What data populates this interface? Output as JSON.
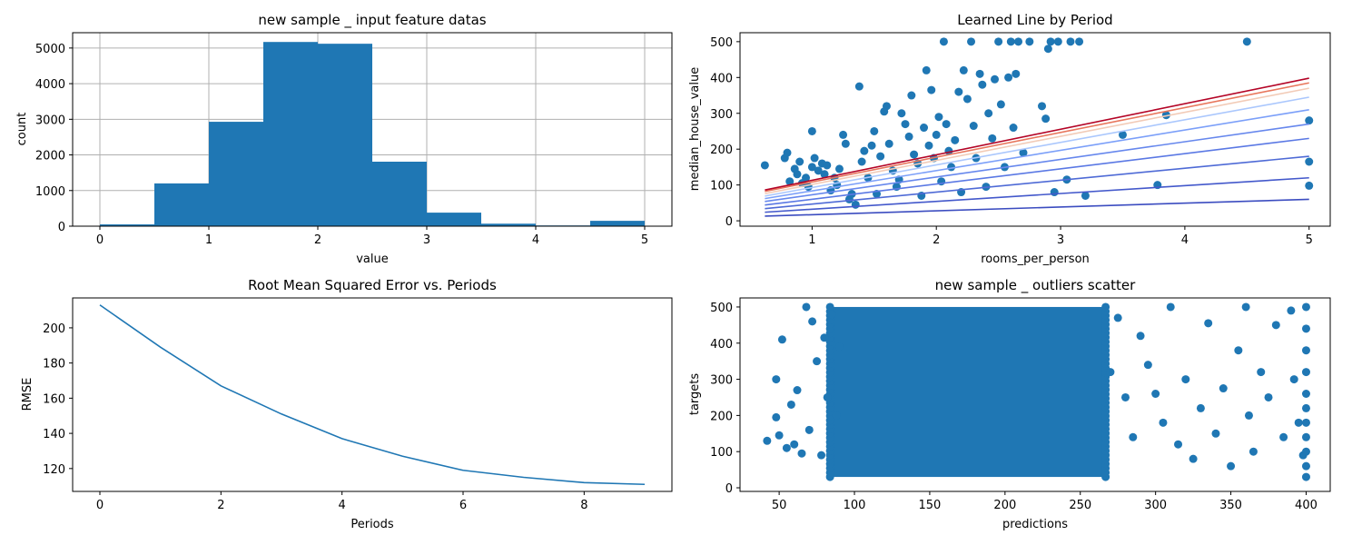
{
  "colors": {
    "series": "#1f77b4",
    "grid": "#b0b0b0",
    "axis": "#000000"
  },
  "chart_data": [
    {
      "type": "bar",
      "title": "new sample _ input feature datas",
      "xlabel": "value",
      "ylabel": "count",
      "xlim": [
        -0.25,
        5.25
      ],
      "ylim": [
        0,
        5430
      ],
      "grid": true,
      "xticks": [
        0,
        1,
        2,
        3,
        4,
        5
      ],
      "yticks": [
        0,
        1000,
        2000,
        3000,
        4000,
        5000
      ],
      "bin_edges": [
        0,
        0.5,
        1,
        1.5,
        2,
        2.5,
        3,
        3.5,
        4,
        4.5,
        5
      ],
      "values": [
        50,
        1200,
        2930,
        5170,
        5120,
        1810,
        380,
        70,
        20,
        150
      ]
    },
    {
      "type": "line",
      "title": "Learned Line by Period",
      "xlabel": "rooms_per_person",
      "ylabel": "median_house_value",
      "xlim": [
        0.42,
        5.17
      ],
      "ylim": [
        -15,
        525
      ],
      "grid": false,
      "xticks": [
        1,
        2,
        3,
        4,
        5
      ],
      "yticks": [
        0,
        100,
        200,
        300,
        400,
        500
      ],
      "series": [
        {
          "color": "#3b4cc0",
          "values": [
            [
              0.62,
              13
            ],
            [
              5.0,
              60
            ]
          ]
        },
        {
          "color": "#4358cb",
          "values": [
            [
              0.62,
              24
            ],
            [
              5.0,
              120
            ]
          ]
        },
        {
          "color": "#4e6ad6",
          "values": [
            [
              0.62,
              34
            ],
            [
              5.0,
              180
            ]
          ]
        },
        {
          "color": "#5a78e4",
          "values": [
            [
              0.62,
              44
            ],
            [
              5.0,
              230
            ]
          ]
        },
        {
          "color": "#6687ed",
          "values": [
            [
              0.62,
              54
            ],
            [
              5.0,
              270
            ]
          ]
        },
        {
          "color": "#7b9ff9",
          "values": [
            [
              0.62,
              62
            ],
            [
              5.0,
              310
            ]
          ]
        },
        {
          "color": "#aac7fd",
          "values": [
            [
              0.62,
              69
            ],
            [
              5.0,
              345
            ]
          ]
        },
        {
          "color": "#f2cbb7",
          "values": [
            [
              0.62,
              76
            ],
            [
              5.0,
              370
            ]
          ]
        },
        {
          "color": "#e8765c",
          "values": [
            [
              0.62,
              82
            ],
            [
              5.0,
              385
            ]
          ]
        },
        {
          "color": "#b40426",
          "values": [
            [
              0.62,
              86
            ],
            [
              5.0,
              398
            ]
          ]
        }
      ],
      "scatter": [
        [
          0.62,
          155
        ],
        [
          0.78,
          175
        ],
        [
          0.8,
          190
        ],
        [
          0.82,
          110
        ],
        [
          0.86,
          145
        ],
        [
          0.88,
          130
        ],
        [
          0.9,
          165
        ],
        [
          0.92,
          105
        ],
        [
          0.95,
          120
        ],
        [
          0.97,
          95
        ],
        [
          1.0,
          150
        ],
        [
          1.0,
          250
        ],
        [
          1.02,
          175
        ],
        [
          1.05,
          140
        ],
        [
          1.08,
          160
        ],
        [
          1.1,
          130
        ],
        [
          1.12,
          155
        ],
        [
          1.15,
          85
        ],
        [
          1.18,
          120
        ],
        [
          1.2,
          100
        ],
        [
          1.22,
          145
        ],
        [
          1.25,
          240
        ],
        [
          1.27,
          215
        ],
        [
          1.3,
          60
        ],
        [
          1.32,
          75
        ],
        [
          1.35,
          45
        ],
        [
          1.38,
          375
        ],
        [
          1.4,
          165
        ],
        [
          1.42,
          195
        ],
        [
          1.45,
          120
        ],
        [
          1.48,
          210
        ],
        [
          1.5,
          250
        ],
        [
          1.52,
          75
        ],
        [
          1.55,
          180
        ],
        [
          1.58,
          305
        ],
        [
          1.6,
          320
        ],
        [
          1.62,
          215
        ],
        [
          1.65,
          140
        ],
        [
          1.68,
          95
        ],
        [
          1.7,
          115
        ],
        [
          1.72,
          300
        ],
        [
          1.75,
          270
        ],
        [
          1.78,
          235
        ],
        [
          1.8,
          350
        ],
        [
          1.82,
          185
        ],
        [
          1.85,
          160
        ],
        [
          1.88,
          70
        ],
        [
          1.9,
          260
        ],
        [
          1.92,
          420
        ],
        [
          1.94,
          210
        ],
        [
          1.96,
          365
        ],
        [
          1.98,
          175
        ],
        [
          2.0,
          240
        ],
        [
          2.02,
          290
        ],
        [
          2.04,
          110
        ],
        [
          2.06,
          500
        ],
        [
          2.08,
          270
        ],
        [
          2.1,
          195
        ],
        [
          2.12,
          150
        ],
        [
          2.15,
          225
        ],
        [
          2.18,
          360
        ],
        [
          2.2,
          80
        ],
        [
          2.22,
          420
        ],
        [
          2.25,
          340
        ],
        [
          2.28,
          500
        ],
        [
          2.3,
          265
        ],
        [
          2.32,
          175
        ],
        [
          2.35,
          410
        ],
        [
          2.37,
          380
        ],
        [
          2.4,
          95
        ],
        [
          2.42,
          300
        ],
        [
          2.45,
          230
        ],
        [
          2.47,
          395
        ],
        [
          2.5,
          500
        ],
        [
          2.52,
          325
        ],
        [
          2.55,
          150
        ],
        [
          2.58,
          400
        ],
        [
          2.6,
          500
        ],
        [
          2.62,
          260
        ],
        [
          2.64,
          410
        ],
        [
          2.66,
          500
        ],
        [
          2.7,
          190
        ],
        [
          2.75,
          500
        ],
        [
          2.85,
          320
        ],
        [
          2.88,
          285
        ],
        [
          2.9,
          480
        ],
        [
          2.92,
          500
        ],
        [
          2.95,
          80
        ],
        [
          2.98,
          500
        ],
        [
          3.05,
          115
        ],
        [
          3.08,
          500
        ],
        [
          3.15,
          500
        ],
        [
          3.2,
          70
        ],
        [
          3.5,
          240
        ],
        [
          3.78,
          100
        ],
        [
          3.85,
          295
        ],
        [
          4.5,
          500
        ],
        [
          5.0,
          280
        ],
        [
          5.0,
          165
        ],
        [
          5.0,
          98
        ]
      ]
    },
    {
      "type": "line",
      "title": "Root Mean Squared Error vs. Periods",
      "xlabel": "Periods",
      "ylabel": "RMSE",
      "xlim": [
        -0.45,
        9.45
      ],
      "ylim": [
        107,
        217
      ],
      "grid": false,
      "xticks": [
        0,
        2,
        4,
        6,
        8
      ],
      "yticks": [
        120,
        140,
        160,
        180,
        200
      ],
      "x": [
        0,
        1,
        2,
        3,
        4,
        5,
        6,
        7,
        8,
        9
      ],
      "values": [
        213,
        189,
        167,
        151,
        137,
        127,
        119,
        115,
        112,
        111
      ]
    },
    {
      "type": "scatter",
      "title": "new sample _ outliers scatter",
      "xlabel": "predictions",
      "ylabel": "targets",
      "xlim": [
        24,
        416
      ],
      "ylim": [
        -10,
        525
      ],
      "grid": false,
      "xticks": [
        50,
        100,
        150,
        200,
        250,
        300,
        350,
        400
      ],
      "yticks": [
        0,
        100,
        200,
        300,
        400,
        500
      ],
      "points": [
        [
          42,
          130
        ],
        [
          48,
          195
        ],
        [
          50,
          145
        ],
        [
          52,
          410
        ],
        [
          48,
          300
        ],
        [
          55,
          110
        ],
        [
          58,
          230
        ],
        [
          60,
          120
        ],
        [
          62,
          270
        ],
        [
          65,
          95
        ],
        [
          68,
          500
        ],
        [
          70,
          160
        ],
        [
          72,
          460
        ],
        [
          75,
          350
        ],
        [
          78,
          90
        ],
        [
          80,
          415
        ],
        [
          82,
          250
        ],
        [
          85,
          480
        ],
        [
          88,
          200
        ],
        [
          90,
          390
        ],
        [
          290,
          420
        ],
        [
          295,
          340
        ],
        [
          300,
          260
        ],
        [
          305,
          180
        ],
        [
          310,
          500
        ],
        [
          315,
          120
        ],
        [
          320,
          300
        ],
        [
          325,
          80
        ],
        [
          330,
          220
        ],
        [
          335,
          455
        ],
        [
          340,
          150
        ],
        [
          345,
          275
        ],
        [
          350,
          60
        ],
        [
          355,
          380
        ],
        [
          360,
          500
        ],
        [
          362,
          200
        ],
        [
          365,
          100
        ],
        [
          370,
          320
        ],
        [
          375,
          250
        ],
        [
          380,
          450
        ],
        [
          385,
          140
        ],
        [
          390,
          490
        ],
        [
          392,
          300
        ],
        [
          395,
          180
        ],
        [
          398,
          90
        ],
        [
          400,
          500
        ],
        [
          400,
          440
        ],
        [
          400,
          380
        ],
        [
          400,
          320
        ],
        [
          400,
          260
        ],
        [
          400,
          220
        ],
        [
          400,
          180
        ],
        [
          400,
          140
        ],
        [
          400,
          100
        ],
        [
          400,
          60
        ],
        [
          400,
          30
        ],
        [
          280,
          250
        ],
        [
          275,
          470
        ],
        [
          285,
          140
        ],
        [
          270,
          320
        ]
      ],
      "dense_region": {
        "x": [
          85,
          265
        ],
        "y": [
          30,
          500
        ]
      }
    }
  ]
}
